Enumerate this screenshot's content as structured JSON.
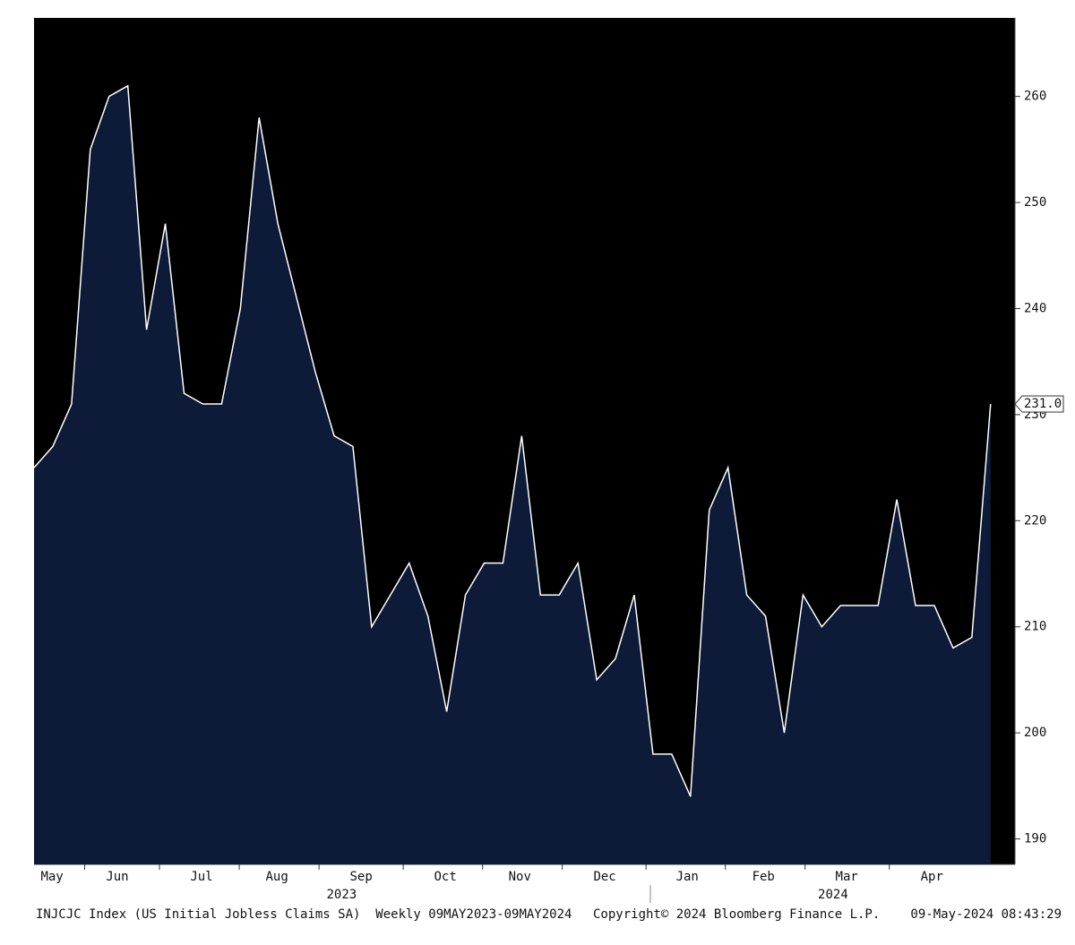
{
  "chart_data": {
    "type": "area",
    "values": [
      225,
      227,
      231,
      255,
      260,
      261,
      238,
      248,
      232,
      231,
      231,
      240,
      258,
      248,
      241,
      234,
      228,
      227,
      210,
      213,
      216,
      211,
      202,
      213,
      216,
      216,
      228,
      213,
      213,
      216,
      205,
      207,
      213,
      198,
      198,
      194,
      221,
      225,
      213,
      211,
      200,
      213,
      210,
      212,
      212,
      212,
      222,
      212,
      212,
      208,
      209,
      231
    ],
    "color": "#0d1b38",
    "line_color": "#ffffff",
    "xlim": [
      0,
      52.3
    ],
    "xticks": [
      {
        "value": 0.96,
        "label": "May"
      },
      {
        "value": 4.44,
        "label": "Jun"
      },
      {
        "value": 8.93,
        "label": "Jul"
      },
      {
        "value": 12.95,
        "label": "Aug"
      },
      {
        "value": 17.44,
        "label": "Sep"
      },
      {
        "value": 21.93,
        "label": "Oct"
      },
      {
        "value": 25.9,
        "label": "Nov"
      },
      {
        "value": 30.43,
        "label": "Dec"
      },
      {
        "value": 34.83,
        "label": "Jan"
      },
      {
        "value": 38.89,
        "label": "Feb"
      },
      {
        "value": 43.33,
        "label": "Mar"
      },
      {
        "value": 47.87,
        "label": "Apr"
      }
    ],
    "year_labels": [
      {
        "value": 16.4,
        "label": "2023"
      },
      {
        "value": 42.6,
        "label": "2024"
      }
    ],
    "ylim": [
      187.6,
      267.4
    ],
    "yticks": [
      190,
      200,
      210,
      220,
      230,
      240,
      250,
      260
    ],
    "last_label": {
      "value": 231,
      "label": "231.0"
    },
    "footer": {
      "index": "INJCJC Index (US Initial Jobless Claims SA)  Weekly 09MAY2023-09MAY2024",
      "copyright": "Copyright© 2024 Bloomberg Finance L.P.",
      "timestamp": "09-May-2024 08:43:29"
    }
  }
}
